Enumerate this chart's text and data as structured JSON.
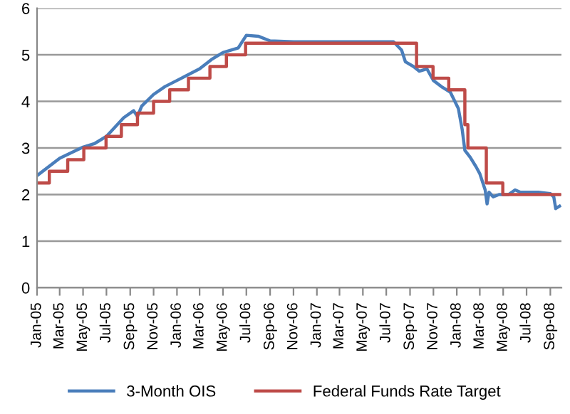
{
  "chart_data": {
    "type": "line",
    "xlim": [
      "2005-01-01",
      "2008-09-30"
    ],
    "ylim": [
      0,
      6
    ],
    "yticks": [
      0,
      1,
      2,
      3,
      4,
      5,
      6
    ],
    "xticks": [
      {
        "value": "2005-01-01",
        "label": "Jan-05"
      },
      {
        "value": "2005-03-01",
        "label": "Mar-05"
      },
      {
        "value": "2005-05-01",
        "label": "May-05"
      },
      {
        "value": "2005-07-01",
        "label": "Jul-05"
      },
      {
        "value": "2005-09-01",
        "label": "Sep-05"
      },
      {
        "value": "2005-11-01",
        "label": "Nov-05"
      },
      {
        "value": "2006-01-01",
        "label": "Jan-06"
      },
      {
        "value": "2006-03-01",
        "label": "Mar-06"
      },
      {
        "value": "2006-05-01",
        "label": "May-06"
      },
      {
        "value": "2006-07-01",
        "label": "Jul-06"
      },
      {
        "value": "2006-09-01",
        "label": "Sep-06"
      },
      {
        "value": "2006-11-01",
        "label": "Nov-06"
      },
      {
        "value": "2007-01-01",
        "label": "Jan-07"
      },
      {
        "value": "2007-03-01",
        "label": "Mar-07"
      },
      {
        "value": "2007-05-01",
        "label": "May-07"
      },
      {
        "value": "2007-07-01",
        "label": "Jul-07"
      },
      {
        "value": "2007-09-01",
        "label": "Sep-07"
      },
      {
        "value": "2007-11-01",
        "label": "Nov-07"
      },
      {
        "value": "2008-01-01",
        "label": "Jan-08"
      },
      {
        "value": "2008-03-01",
        "label": "Mar-08"
      },
      {
        "value": "2008-05-01",
        "label": "May-08"
      },
      {
        "value": "2008-07-01",
        "label": "Jul-08"
      },
      {
        "value": "2008-09-01",
        "label": "Sep-08"
      }
    ],
    "grid": "y",
    "legend": "bottom",
    "series": [
      {
        "name": "3-Month OIS",
        "color": "#4a7ebb",
        "x": [
          "2005-01-03",
          "2005-03-01",
          "2005-05-01",
          "2005-06-01",
          "2005-07-01",
          "2005-08-15",
          "2005-09-10",
          "2005-09-20",
          "2005-10-01",
          "2005-11-01",
          "2005-12-01",
          "2006-01-01",
          "2006-03-01",
          "2006-04-01",
          "2006-05-01",
          "2006-06-10",
          "2006-07-01",
          "2006-08-01",
          "2006-09-01",
          "2006-11-01",
          "2007-03-01",
          "2007-07-20",
          "2007-08-10",
          "2007-08-20",
          "2007-09-10",
          "2007-09-25",
          "2007-10-15",
          "2007-11-01",
          "2007-11-25",
          "2007-12-15",
          "2008-01-05",
          "2008-01-15",
          "2008-01-22",
          "2008-02-05",
          "2008-02-20",
          "2008-03-01",
          "2008-03-15",
          "2008-03-20",
          "2008-03-25",
          "2008-04-05",
          "2008-04-20",
          "2008-05-15",
          "2008-06-01",
          "2008-06-15",
          "2008-08-01",
          "2008-09-01",
          "2008-09-10",
          "2008-09-15",
          "2008-09-25"
        ],
        "values": [
          2.42,
          2.78,
          3.02,
          3.1,
          3.25,
          3.65,
          3.8,
          3.68,
          3.9,
          4.15,
          4.32,
          4.45,
          4.7,
          4.9,
          5.05,
          5.15,
          5.42,
          5.4,
          5.3,
          5.28,
          5.28,
          5.28,
          5.1,
          4.85,
          4.75,
          4.65,
          4.7,
          4.45,
          4.3,
          4.2,
          3.85,
          3.4,
          2.95,
          2.8,
          2.6,
          2.45,
          2.1,
          1.8,
          2.05,
          1.95,
          2.0,
          2.0,
          2.1,
          2.05,
          2.05,
          2.02,
          1.95,
          1.7,
          1.75
        ]
      },
      {
        "name": "Federal Funds Rate Target",
        "color": "#be4b48",
        "type": "step",
        "x": [
          "2005-01-03",
          "2005-02-02",
          "2005-03-22",
          "2005-05-03",
          "2005-06-30",
          "2005-08-09",
          "2005-09-20",
          "2005-11-01",
          "2005-12-13",
          "2006-01-31",
          "2006-03-28",
          "2006-05-10",
          "2006-06-29",
          "2007-09-18",
          "2007-10-31",
          "2007-12-11",
          "2008-01-22",
          "2008-01-30",
          "2008-03-18",
          "2008-04-30",
          "2008-09-25"
        ],
        "values": [
          2.25,
          2.5,
          2.75,
          3.0,
          3.25,
          3.5,
          3.75,
          4.0,
          4.25,
          4.5,
          4.75,
          5.0,
          5.25,
          4.75,
          4.5,
          4.25,
          3.5,
          3.0,
          2.25,
          2.0,
          2.0
        ]
      }
    ]
  }
}
